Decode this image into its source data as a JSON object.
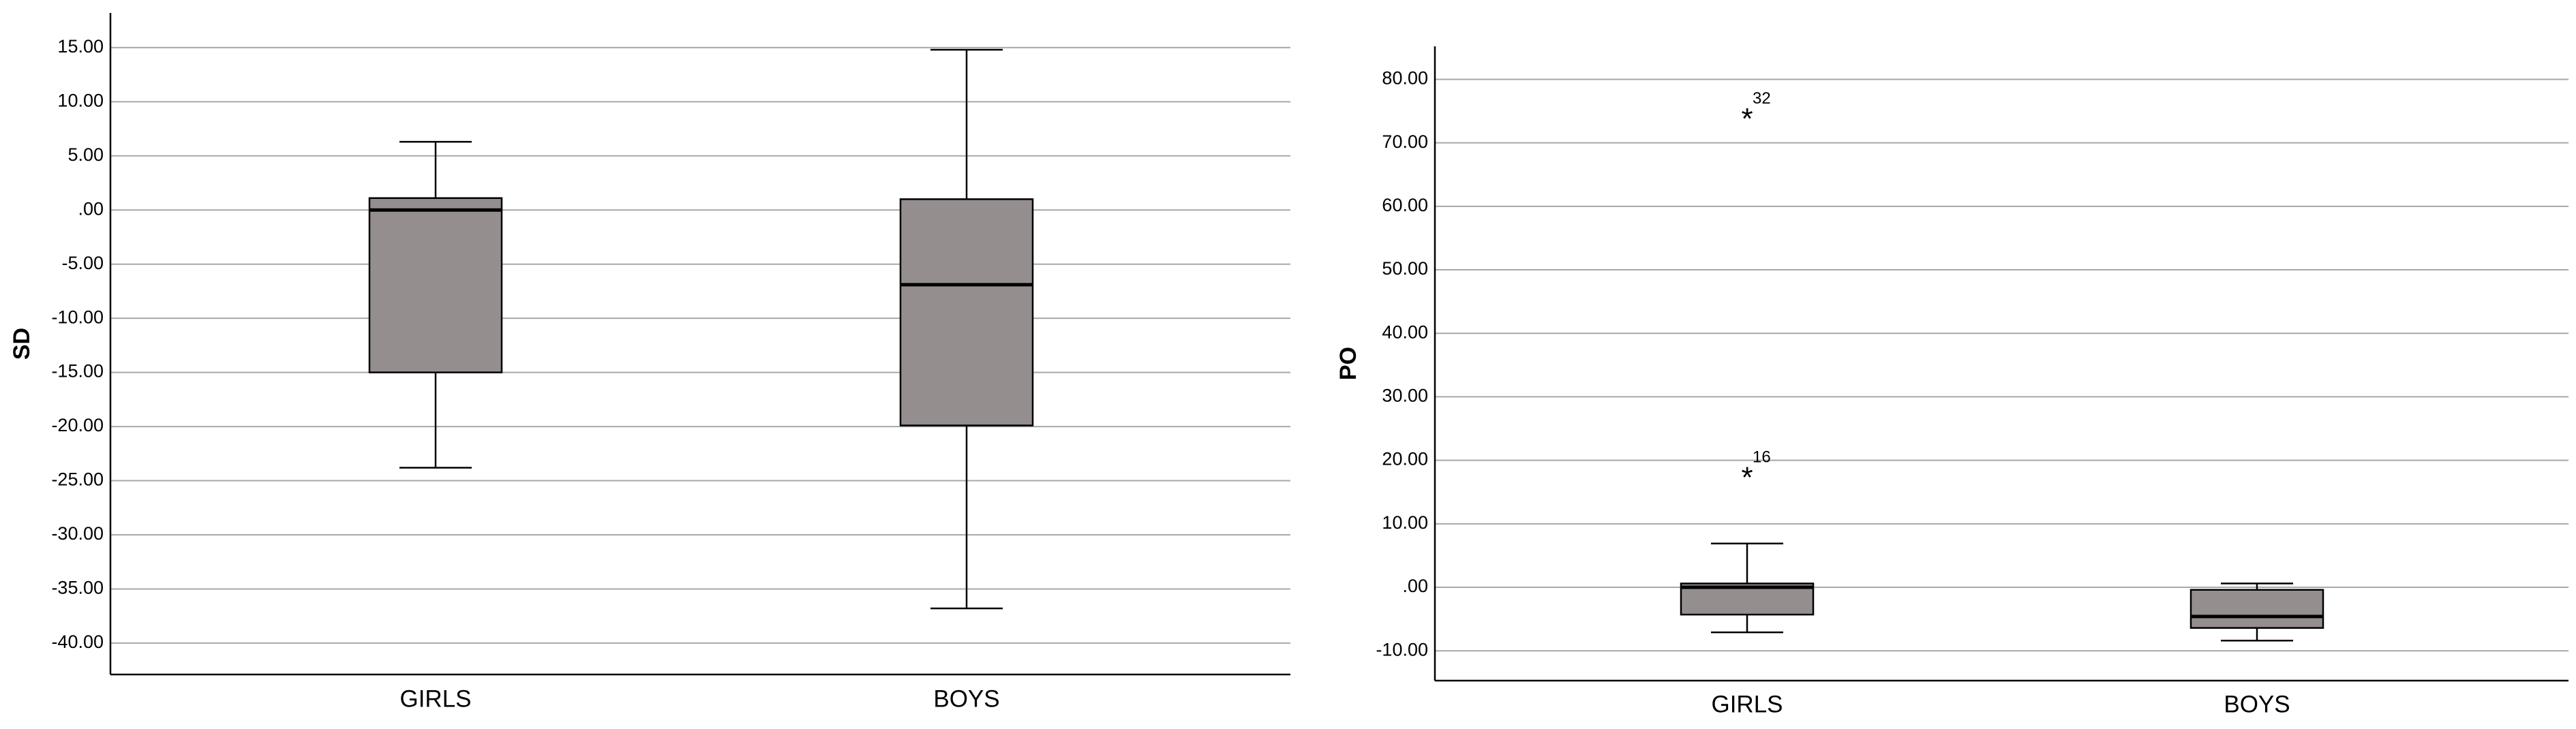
{
  "chart_data": [
    {
      "type": "box",
      "y_label": "SD",
      "categories": [
        "GIRLS",
        "BOYS"
      ],
      "color": "#948f8e",
      "grid": true,
      "ylim": [
        -42.9,
        18.2
      ],
      "yticks": [
        {
          "value": 15,
          "label": "15.00"
        },
        {
          "value": 10,
          "label": "10.00"
        },
        {
          "value": 5,
          "label": "5.00"
        },
        {
          "value": 0,
          "label": ".00"
        },
        {
          "value": -5,
          "label": "-5.00"
        },
        {
          "value": -10,
          "label": "-10.00"
        },
        {
          "value": -15,
          "label": "-15.00"
        },
        {
          "value": -20,
          "label": "-20.00"
        },
        {
          "value": -25,
          "label": "-25.00"
        },
        {
          "value": -30,
          "label": "-30.00"
        },
        {
          "value": -35,
          "label": "-35.00"
        },
        {
          "value": -40,
          "label": "-40.00"
        }
      ],
      "whisker_low": [
        -23.8,
        -36.8
      ],
      "q1": [
        -15,
        -19.9
      ],
      "median": [
        0,
        -6.9
      ],
      "q3": [
        1.1,
        1.0
      ],
      "whisker_high": [
        6.3,
        14.8
      ],
      "outliers": [
        [],
        []
      ]
    },
    {
      "type": "box",
      "y_label": "PO",
      "categories": [
        "GIRLS",
        "BOYS"
      ],
      "color": "#948f8e",
      "grid": true,
      "ylim": [
        -14.7,
        85.2
      ],
      "yticks": [
        {
          "value": 80,
          "label": "80.00"
        },
        {
          "value": 70,
          "label": "70.00"
        },
        {
          "value": 60,
          "label": "60.00"
        },
        {
          "value": 50,
          "label": "50.00"
        },
        {
          "value": 40,
          "label": "40.00"
        },
        {
          "value": 30,
          "label": "30.00"
        },
        {
          "value": 20,
          "label": "20.00"
        },
        {
          "value": 10,
          "label": "10.00"
        },
        {
          "value": 0,
          "label": ".00"
        },
        {
          "value": -10,
          "label": "-10.00"
        }
      ],
      "whisker_low": [
        -7.1,
        -8.4
      ],
      "q1": [
        -4.3,
        -6.4
      ],
      "median": [
        0,
        -4.6
      ],
      "q3": [
        0.6,
        -0.4
      ],
      "whisker_high": [
        6.9,
        0.6
      ],
      "outliers": [
        [
          {
            "value": 74.3,
            "label": "32"
          },
          {
            "value": 17.8,
            "label": "16"
          }
        ],
        []
      ]
    }
  ]
}
